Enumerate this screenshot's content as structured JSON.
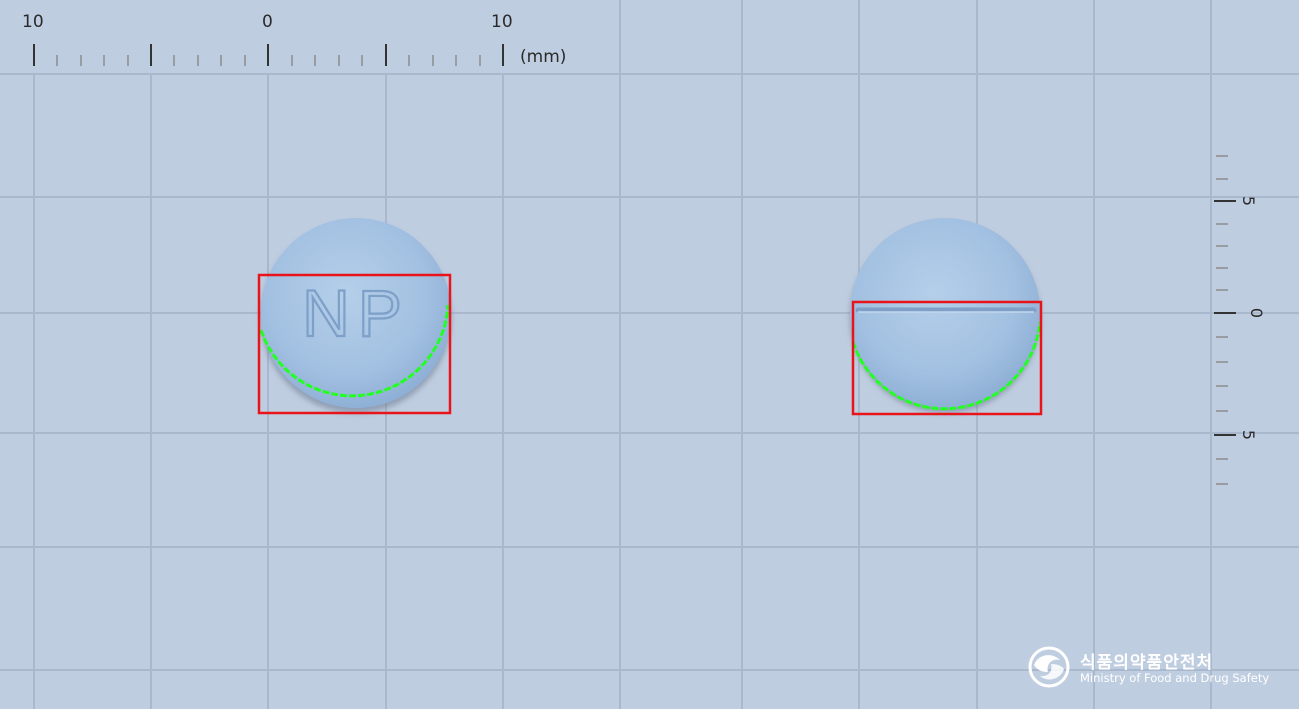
{
  "ruler": {
    "top_labels": [
      "10",
      "0",
      "10"
    ],
    "unit": "(mm)",
    "side_labels": [
      "5",
      "0",
      "5"
    ]
  },
  "tablets": {
    "front_imprint": "NP",
    "color": "#a9c6e4",
    "box_color": "#e8141a",
    "edge_color": "#22ff22"
  },
  "logo": {
    "korean": "식품의약품안전처",
    "english": "Ministry of Food and Drug Safety"
  }
}
